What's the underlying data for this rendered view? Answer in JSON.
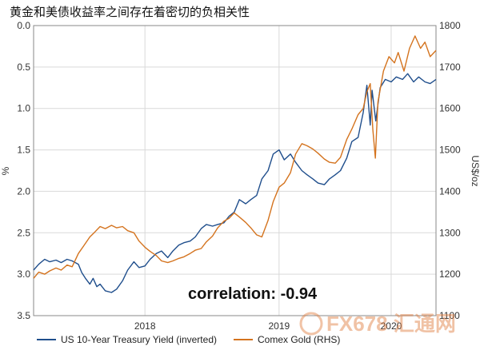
{
  "chart_data": {
    "type": "line",
    "title": "黄金和美债收益率之间存在着密切的负相关性",
    "xlabel": "",
    "ylabel_left": "%",
    "ylabel_right": "US$/oz",
    "y_left": {
      "lim": [
        0.0,
        3.5
      ],
      "inverted": true,
      "ticks": [
        "0.0",
        "0.5",
        "1.0",
        "1.5",
        "2.0",
        "2.5",
        "3.0",
        "3.5"
      ]
    },
    "y_right": {
      "lim": [
        1100,
        1800
      ],
      "ticks": [
        "1800",
        "1700",
        "1600",
        "1500",
        "1400",
        "1300",
        "1200",
        "1100"
      ]
    },
    "x_ticks": [
      {
        "label": "2018",
        "date": "2018-07-01"
      },
      {
        "label": "2019",
        "date": "2019-07-01"
      },
      {
        "label": "2020",
        "date": "2020-05-01"
      }
    ],
    "x_range": [
      "2017-09-01",
      "2020-08-31"
    ],
    "grid": true,
    "legend": "bottom",
    "annotation": "correlation: -0.94",
    "series": [
      {
        "name": "US 10-Year Treasury Yield (inverted)",
        "color": "#1f4e8c",
        "axis": "left",
        "points": [
          [
            "2017-09-01",
            2.95
          ],
          [
            "2017-09-15",
            2.88
          ],
          [
            "2017-10-01",
            2.82
          ],
          [
            "2017-10-15",
            2.85
          ],
          [
            "2017-11-01",
            2.83
          ],
          [
            "2017-11-15",
            2.86
          ],
          [
            "2017-12-01",
            2.82
          ],
          [
            "2017-12-15",
            2.84
          ],
          [
            "2018-01-01",
            2.88
          ],
          [
            "2018-01-10",
            2.98
          ],
          [
            "2018-01-20",
            3.05
          ],
          [
            "2018-02-01",
            3.12
          ],
          [
            "2018-02-10",
            3.05
          ],
          [
            "2018-02-20",
            3.15
          ],
          [
            "2018-03-01",
            3.12
          ],
          [
            "2018-03-15",
            3.2
          ],
          [
            "2018-04-01",
            3.22
          ],
          [
            "2018-04-15",
            3.18
          ],
          [
            "2018-05-01",
            3.08
          ],
          [
            "2018-05-15",
            2.95
          ],
          [
            "2018-06-01",
            2.85
          ],
          [
            "2018-06-15",
            2.92
          ],
          [
            "2018-07-01",
            2.9
          ],
          [
            "2018-07-15",
            2.82
          ],
          [
            "2018-08-01",
            2.75
          ],
          [
            "2018-08-15",
            2.72
          ],
          [
            "2018-09-01",
            2.8
          ],
          [
            "2018-09-15",
            2.72
          ],
          [
            "2018-10-01",
            2.65
          ],
          [
            "2018-10-15",
            2.62
          ],
          [
            "2018-11-01",
            2.6
          ],
          [
            "2018-11-15",
            2.55
          ],
          [
            "2018-12-01",
            2.45
          ],
          [
            "2018-12-15",
            2.4
          ],
          [
            "2019-01-01",
            2.42
          ],
          [
            "2019-01-15",
            2.4
          ],
          [
            "2019-02-01",
            2.38
          ],
          [
            "2019-02-15",
            2.3
          ],
          [
            "2019-03-01",
            2.25
          ],
          [
            "2019-03-15",
            2.1
          ],
          [
            "2019-04-01",
            2.15
          ],
          [
            "2019-04-15",
            2.1
          ],
          [
            "2019-05-01",
            2.05
          ],
          [
            "2019-05-15",
            1.85
          ],
          [
            "2019-06-01",
            1.75
          ],
          [
            "2019-06-15",
            1.55
          ],
          [
            "2019-07-01",
            1.5
          ],
          [
            "2019-07-15",
            1.62
          ],
          [
            "2019-08-01",
            1.55
          ],
          [
            "2019-08-15",
            1.65
          ],
          [
            "2019-09-01",
            1.75
          ],
          [
            "2019-09-15",
            1.8
          ],
          [
            "2019-10-01",
            1.85
          ],
          [
            "2019-10-15",
            1.9
          ],
          [
            "2019-11-01",
            1.92
          ],
          [
            "2019-11-15",
            1.85
          ],
          [
            "2019-12-01",
            1.8
          ],
          [
            "2019-12-15",
            1.75
          ],
          [
            "2020-01-01",
            1.6
          ],
          [
            "2020-01-15",
            1.4
          ],
          [
            "2020-02-01",
            1.35
          ],
          [
            "2020-02-15",
            1.05
          ],
          [
            "2020-02-25",
            0.72
          ],
          [
            "2020-03-05",
            1.2
          ],
          [
            "2020-03-10",
            0.78
          ],
          [
            "2020-03-20",
            1.15
          ],
          [
            "2020-04-01",
            0.75
          ],
          [
            "2020-04-15",
            0.65
          ],
          [
            "2020-05-01",
            0.68
          ],
          [
            "2020-05-15",
            0.62
          ],
          [
            "2020-06-01",
            0.65
          ],
          [
            "2020-06-15",
            0.58
          ],
          [
            "2020-07-01",
            0.68
          ],
          [
            "2020-07-15",
            0.62
          ],
          [
            "2020-08-01",
            0.68
          ],
          [
            "2020-08-15",
            0.7
          ],
          [
            "2020-08-31",
            0.65
          ]
        ]
      },
      {
        "name": "Comex Gold (RHS)",
        "color": "#d4731e",
        "axis": "right",
        "points": [
          [
            "2017-09-01",
            1190
          ],
          [
            "2017-09-15",
            1205
          ],
          [
            "2017-10-01",
            1200
          ],
          [
            "2017-10-15",
            1208
          ],
          [
            "2017-11-01",
            1215
          ],
          [
            "2017-11-15",
            1210
          ],
          [
            "2017-12-01",
            1222
          ],
          [
            "2017-12-15",
            1218
          ],
          [
            "2018-01-01",
            1250
          ],
          [
            "2018-01-15",
            1268
          ],
          [
            "2018-02-01",
            1290
          ],
          [
            "2018-02-15",
            1302
          ],
          [
            "2018-03-01",
            1315
          ],
          [
            "2018-03-15",
            1310
          ],
          [
            "2018-04-01",
            1318
          ],
          [
            "2018-04-15",
            1312
          ],
          [
            "2018-05-01",
            1315
          ],
          [
            "2018-05-15",
            1305
          ],
          [
            "2018-06-01",
            1300
          ],
          [
            "2018-06-15",
            1280
          ],
          [
            "2018-07-01",
            1265
          ],
          [
            "2018-07-15",
            1255
          ],
          [
            "2018-08-01",
            1245
          ],
          [
            "2018-08-15",
            1232
          ],
          [
            "2018-09-01",
            1228
          ],
          [
            "2018-09-15",
            1232
          ],
          [
            "2018-10-01",
            1238
          ],
          [
            "2018-10-15",
            1242
          ],
          [
            "2018-11-01",
            1250
          ],
          [
            "2018-11-15",
            1258
          ],
          [
            "2018-12-01",
            1262
          ],
          [
            "2018-12-15",
            1278
          ],
          [
            "2019-01-01",
            1292
          ],
          [
            "2019-01-15",
            1312
          ],
          [
            "2019-02-01",
            1328
          ],
          [
            "2019-02-15",
            1335
          ],
          [
            "2019-03-01",
            1348
          ],
          [
            "2019-03-15",
            1338
          ],
          [
            "2019-04-01",
            1325
          ],
          [
            "2019-04-15",
            1312
          ],
          [
            "2019-05-01",
            1295
          ],
          [
            "2019-05-15",
            1290
          ],
          [
            "2019-06-01",
            1330
          ],
          [
            "2019-06-15",
            1375
          ],
          [
            "2019-07-01",
            1410
          ],
          [
            "2019-07-15",
            1420
          ],
          [
            "2019-08-01",
            1445
          ],
          [
            "2019-08-15",
            1490
          ],
          [
            "2019-09-01",
            1515
          ],
          [
            "2019-09-15",
            1510
          ],
          [
            "2019-10-01",
            1502
          ],
          [
            "2019-10-15",
            1492
          ],
          [
            "2019-11-01",
            1478
          ],
          [
            "2019-11-15",
            1470
          ],
          [
            "2019-12-01",
            1468
          ],
          [
            "2019-12-15",
            1482
          ],
          [
            "2020-01-01",
            1525
          ],
          [
            "2020-01-15",
            1550
          ],
          [
            "2020-02-01",
            1585
          ],
          [
            "2020-02-15",
            1600
          ],
          [
            "2020-02-25",
            1640
          ],
          [
            "2020-03-05",
            1660
          ],
          [
            "2020-03-12",
            1550
          ],
          [
            "2020-03-19",
            1480
          ],
          [
            "2020-03-26",
            1615
          ],
          [
            "2020-04-10",
            1690
          ],
          [
            "2020-04-25",
            1725
          ],
          [
            "2020-05-10",
            1710
          ],
          [
            "2020-05-20",
            1735
          ],
          [
            "2020-06-05",
            1690
          ],
          [
            "2020-06-20",
            1745
          ],
          [
            "2020-07-05",
            1775
          ],
          [
            "2020-07-20",
            1745
          ],
          [
            "2020-08-01",
            1760
          ],
          [
            "2020-08-15",
            1725
          ],
          [
            "2020-08-31",
            1740
          ]
        ]
      }
    ]
  },
  "watermark": "FX678 汇通网"
}
